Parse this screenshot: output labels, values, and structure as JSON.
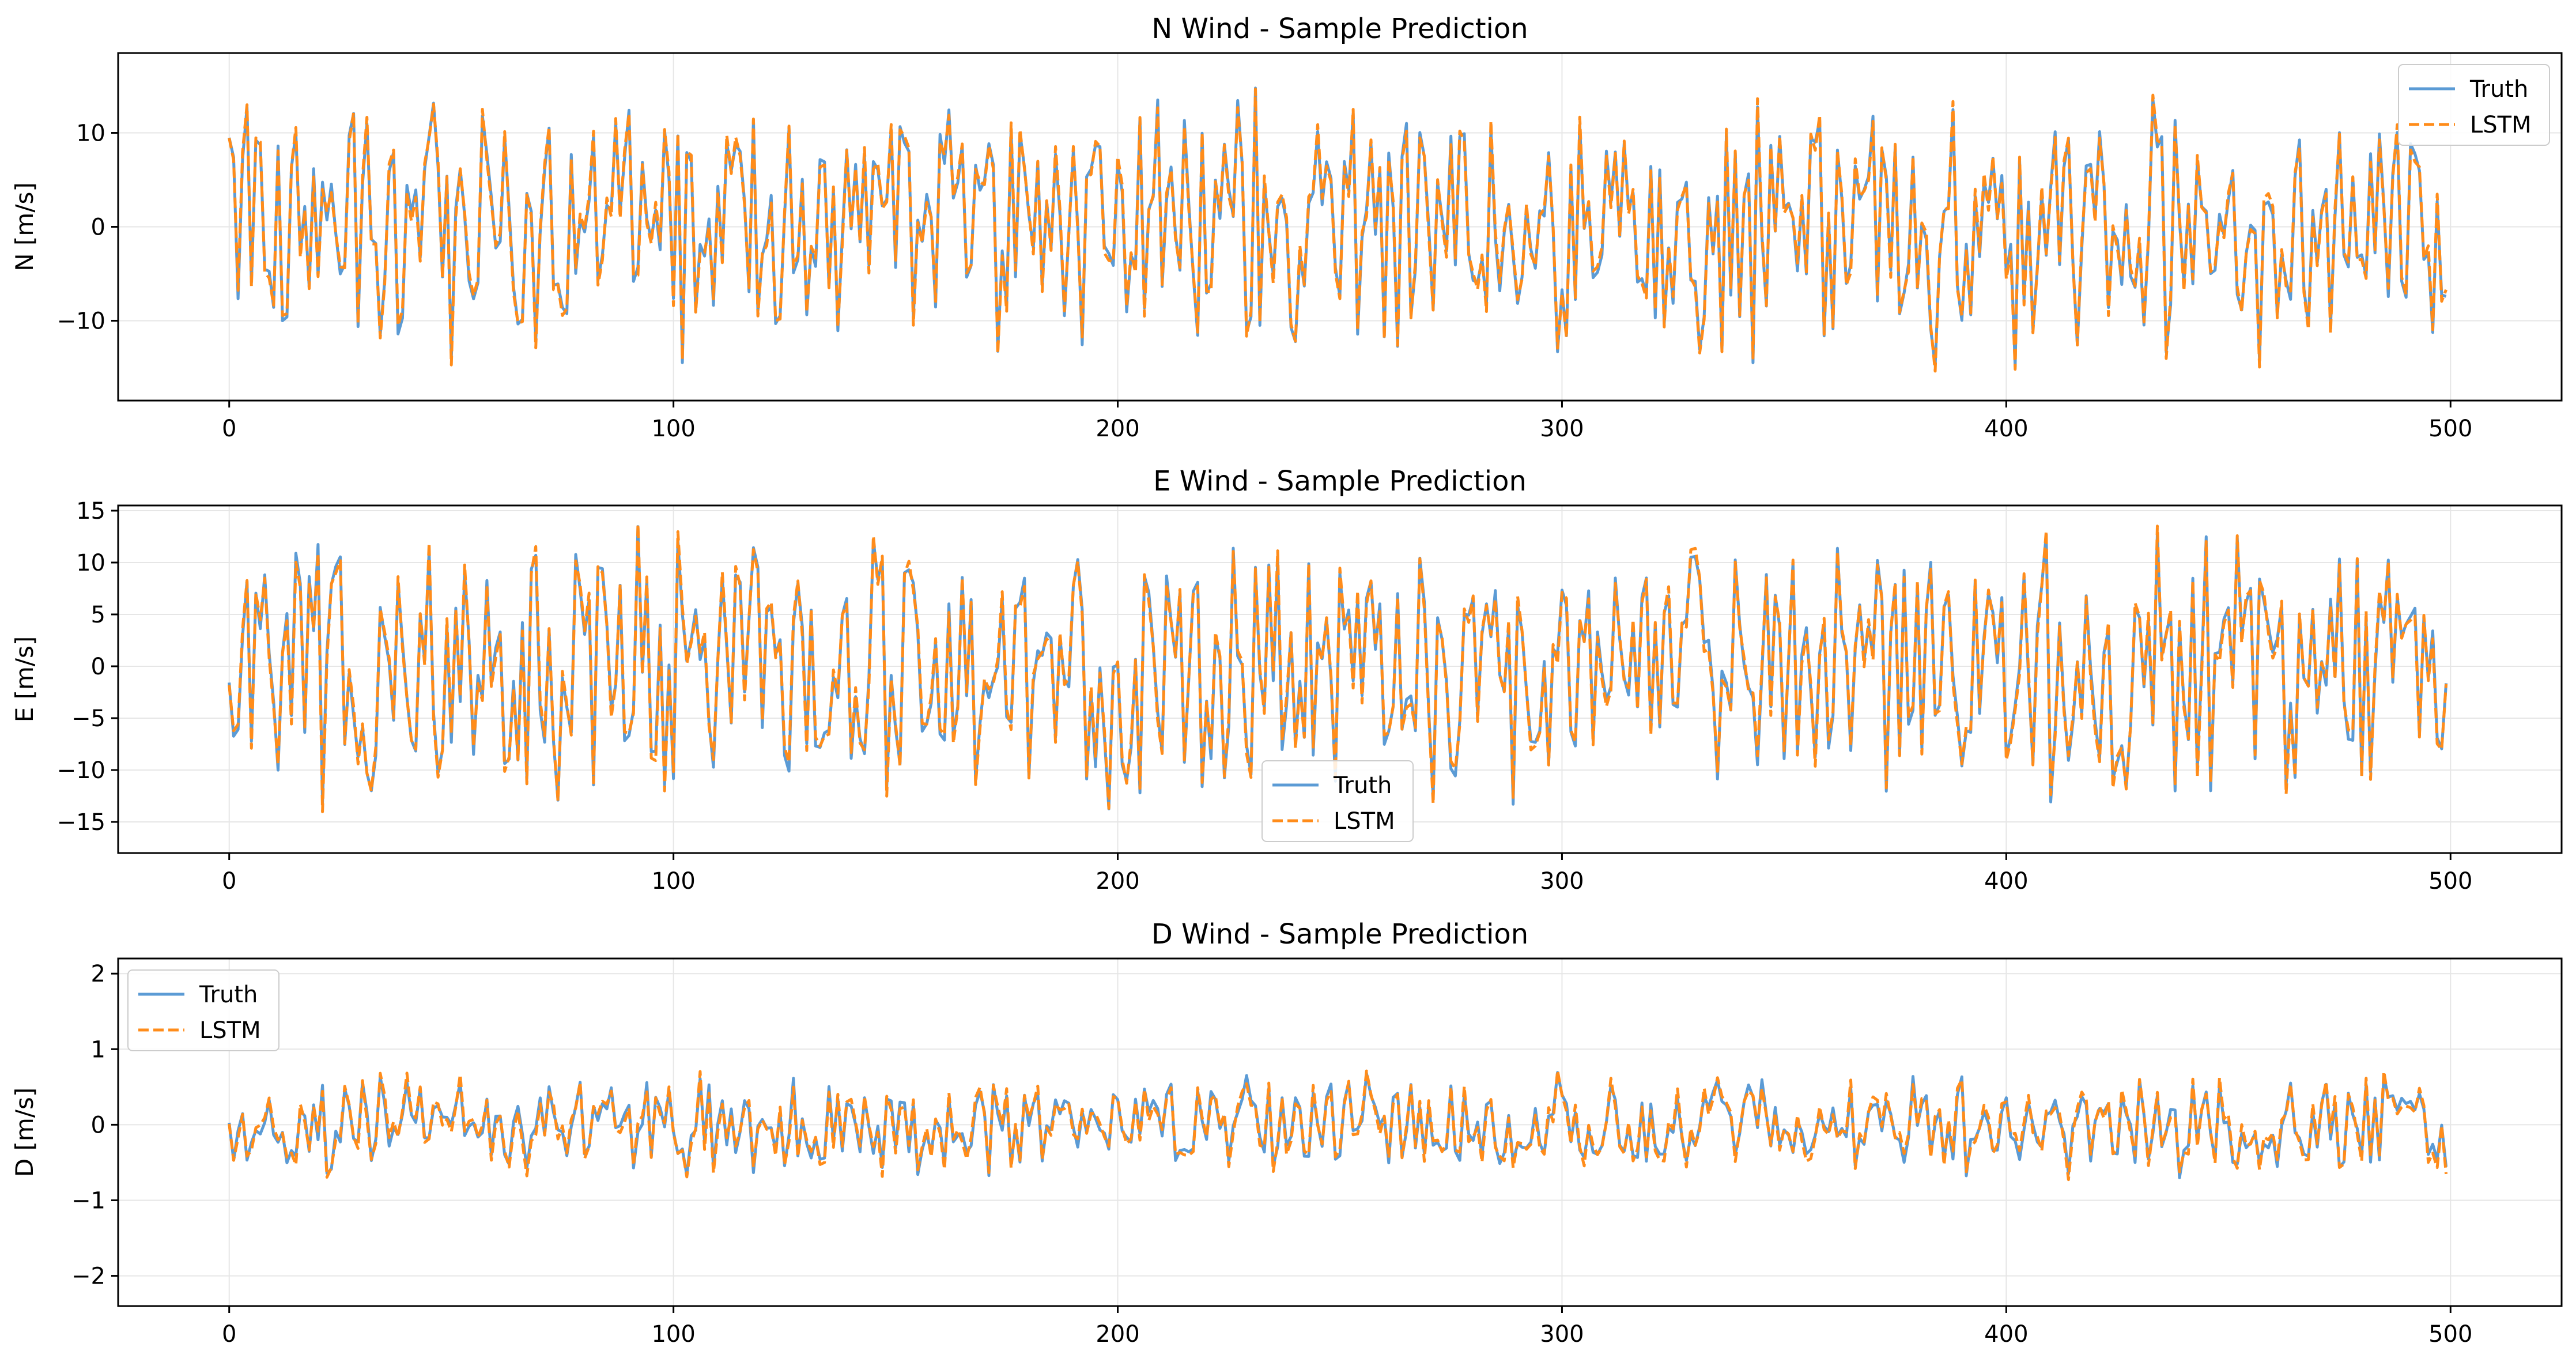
{
  "colors": {
    "truth": "#5b9bd5",
    "lstm": "#ff8c1a",
    "grid": "#e6e6e6",
    "axis": "#000000"
  },
  "legend_labels": {
    "truth": "Truth",
    "lstm": "LSTM"
  },
  "chart_data": [
    {
      "type": "line",
      "title": "N Wind - Sample Prediction",
      "xlabel": "",
      "ylabel": "N [m/s]",
      "xlim": [
        -25,
        525
      ],
      "ylim": [
        -18.5,
        18.5
      ],
      "xticks": [
        0,
        100,
        200,
        300,
        400,
        500
      ],
      "yticks": [
        -10,
        0,
        10
      ],
      "ytick_labels": [
        "−10",
        "0",
        "10"
      ],
      "grid": true,
      "legend_position": "upper right",
      "n_points": 500,
      "truth_seed": 12345,
      "amplitude": 11.5,
      "noise": 0.9,
      "series": [
        {
          "name": "Truth",
          "style": "solid",
          "color": "#5b9bd5"
        },
        {
          "name": "LSTM",
          "style": "dashed",
          "color": "#ff8c1a"
        }
      ]
    },
    {
      "type": "line",
      "title": "E Wind - Sample Prediction",
      "xlabel": "",
      "ylabel": "E [m/s]",
      "xlim": [
        -25,
        525
      ],
      "ylim": [
        -18,
        15.5
      ],
      "xticks": [
        0,
        100,
        200,
        300,
        400,
        500
      ],
      "yticks": [
        -15,
        -10,
        -5,
        0,
        5,
        10,
        15
      ],
      "ytick_labels": [
        "−15",
        "−10",
        "−5",
        "0",
        "5",
        "10",
        "15"
      ],
      "grid": true,
      "legend_position": "lower center",
      "n_points": 500,
      "truth_seed": 67890,
      "amplitude": 10.5,
      "noise": 0.9,
      "series": [
        {
          "name": "Truth",
          "style": "solid",
          "color": "#5b9bd5"
        },
        {
          "name": "LSTM",
          "style": "dashed",
          "color": "#ff8c1a"
        }
      ]
    },
    {
      "type": "line",
      "title": "D Wind - Sample Prediction",
      "xlabel": "",
      "ylabel": "D [m/s]",
      "xlim": [
        -25,
        525
      ],
      "ylim": [
        -2.4,
        2.2
      ],
      "xticks": [
        0,
        100,
        200,
        300,
        400,
        500
      ],
      "yticks": [
        -2,
        -1,
        0,
        1,
        2
      ],
      "ytick_labels": [
        "−2",
        "−1",
        "0",
        "1",
        "2"
      ],
      "grid": true,
      "legend_position": "upper left",
      "n_points": 500,
      "truth_seed": 24680,
      "amplitude": 0.55,
      "noise": 0.12,
      "series": [
        {
          "name": "Truth",
          "style": "solid",
          "color": "#5b9bd5"
        },
        {
          "name": "LSTM",
          "style": "dashed",
          "color": "#ff8c1a"
        }
      ]
    }
  ]
}
